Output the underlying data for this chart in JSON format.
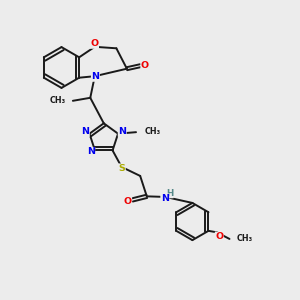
{
  "bg_color": "#ececec",
  "bond_color": "#1a1a1a",
  "N_color": "#0000ee",
  "O_color": "#ee0000",
  "S_color": "#aaaa00",
  "H_color": "#558888",
  "bond_width": 1.4,
  "font_size": 6.8,
  "xlim": [
    0,
    10
  ],
  "ylim": [
    0,
    10
  ]
}
